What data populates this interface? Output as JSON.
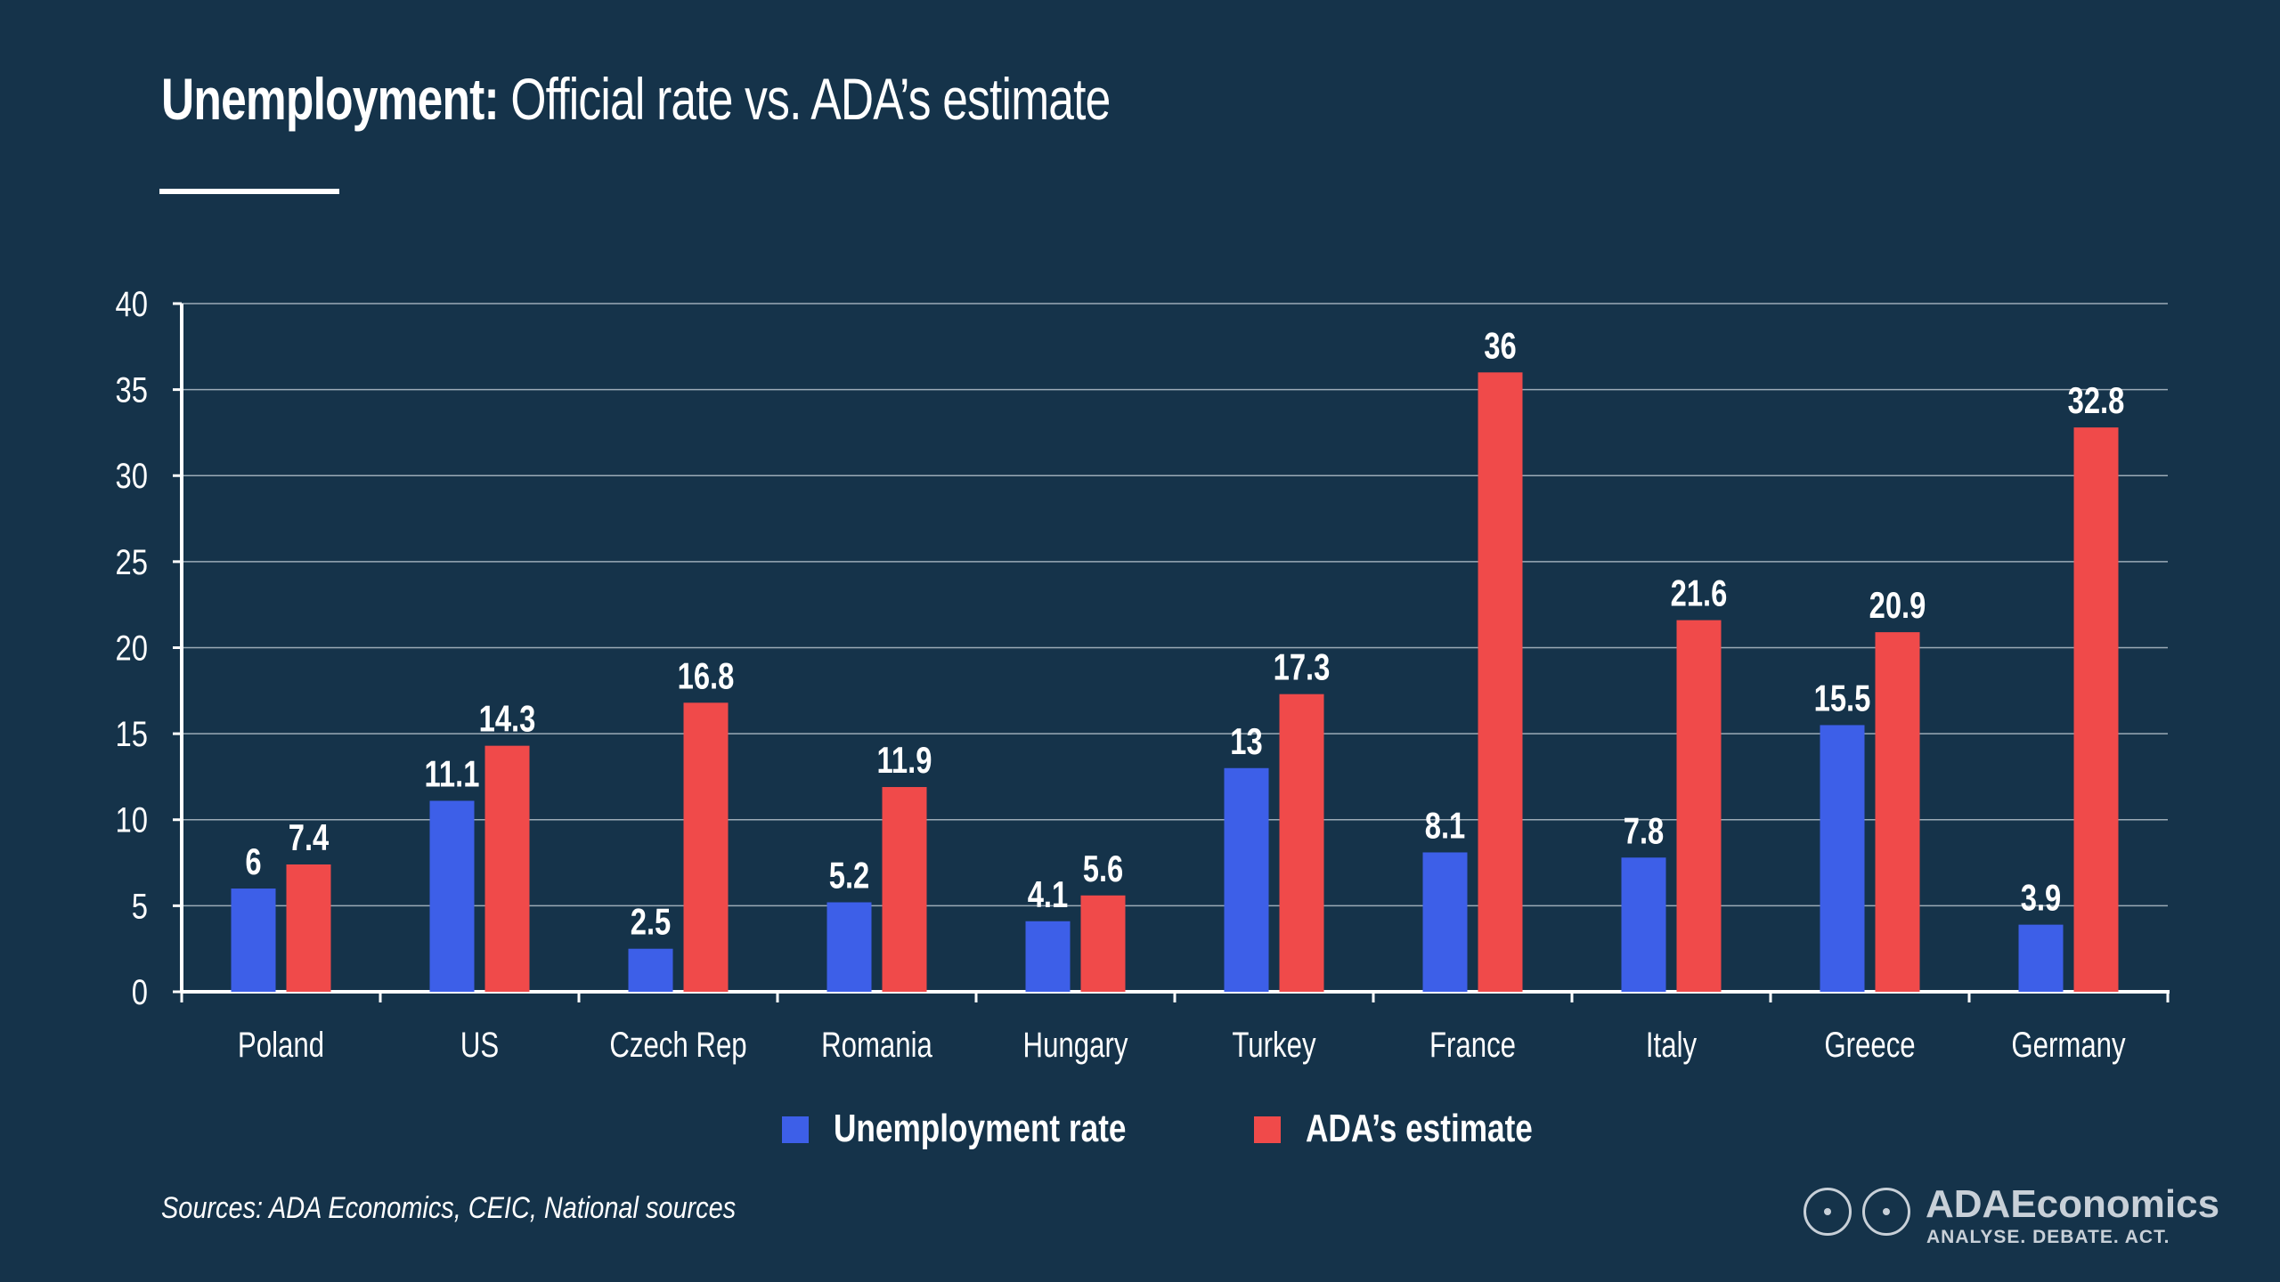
{
  "title": {
    "bold": "Unemployment:",
    "regular": " Official rate vs. ADA’s estimate"
  },
  "chart_data": {
    "type": "bar",
    "title": "Unemployment: Official rate vs. ADA’s estimate",
    "categories": [
      "Poland",
      "US",
      "Czech Rep",
      "Romania",
      "Hungary",
      "Turkey",
      "France",
      "Italy",
      "Greece",
      "Germany"
    ],
    "series": [
      {
        "name": "Unemployment rate",
        "color": "#3d5fe8",
        "values": [
          6,
          11.1,
          2.5,
          5.2,
          4.1,
          13,
          8.1,
          7.8,
          15.5,
          3.9
        ]
      },
      {
        "name": "ADA’s estimate",
        "color": "#f04a4a",
        "values": [
          7.4,
          14.3,
          16.8,
          11.9,
          5.6,
          17.3,
          36,
          21.6,
          20.9,
          32.8
        ]
      }
    ],
    "ylim": [
      0,
      40
    ],
    "yticks": [
      0,
      5,
      10,
      15,
      20,
      25,
      30,
      35,
      40
    ],
    "grid": true,
    "legend_position": "bottom"
  },
  "source": "Sources: ADA Economics, CEIC, National sources",
  "logo": {
    "name": "ADAEconomics",
    "tagline": "ANALYSE. DEBATE. ACT."
  },
  "colors": {
    "background": "#15334a",
    "official": "#3d5fe8",
    "estimate": "#f04a4a"
  }
}
